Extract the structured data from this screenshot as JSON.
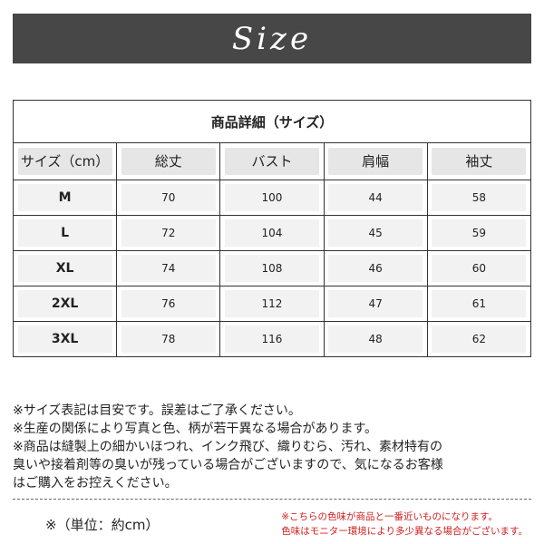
{
  "header": {
    "title": "Size"
  },
  "table": {
    "title": "商品詳細（サイズ）",
    "columns": [
      "サイズ（cm）",
      "総丈",
      "バスト",
      "肩幅",
      "袖丈"
    ],
    "rows": [
      [
        "M",
        70,
        100,
        44,
        58
      ],
      [
        "L",
        72,
        104,
        45,
        59
      ],
      [
        "XL",
        74,
        108,
        46,
        60
      ],
      [
        "2XL",
        76,
        112,
        47,
        61
      ],
      [
        "3XL",
        78,
        116,
        48,
        62
      ]
    ]
  },
  "notes": [
    "※サイズ表記は目安です。誤差はご了承ください。",
    "※生産の関係により写真と色、柄が若干異なる場合があります。",
    "※商品は縫製上の細かいほつれ、インク飛び、織りむら、汚れ、素材特有の",
    "臭いや接着剤等の臭いが残っている場合がございますので、気になるお客様",
    "はご購入をお控えください。"
  ],
  "unit_note": "※（単位：約cm）",
  "color_notes": [
    "※こちらの色味が商品と一番近いものになります。",
    "色味はモニター環境により多少異なる場合がございます。"
  ]
}
